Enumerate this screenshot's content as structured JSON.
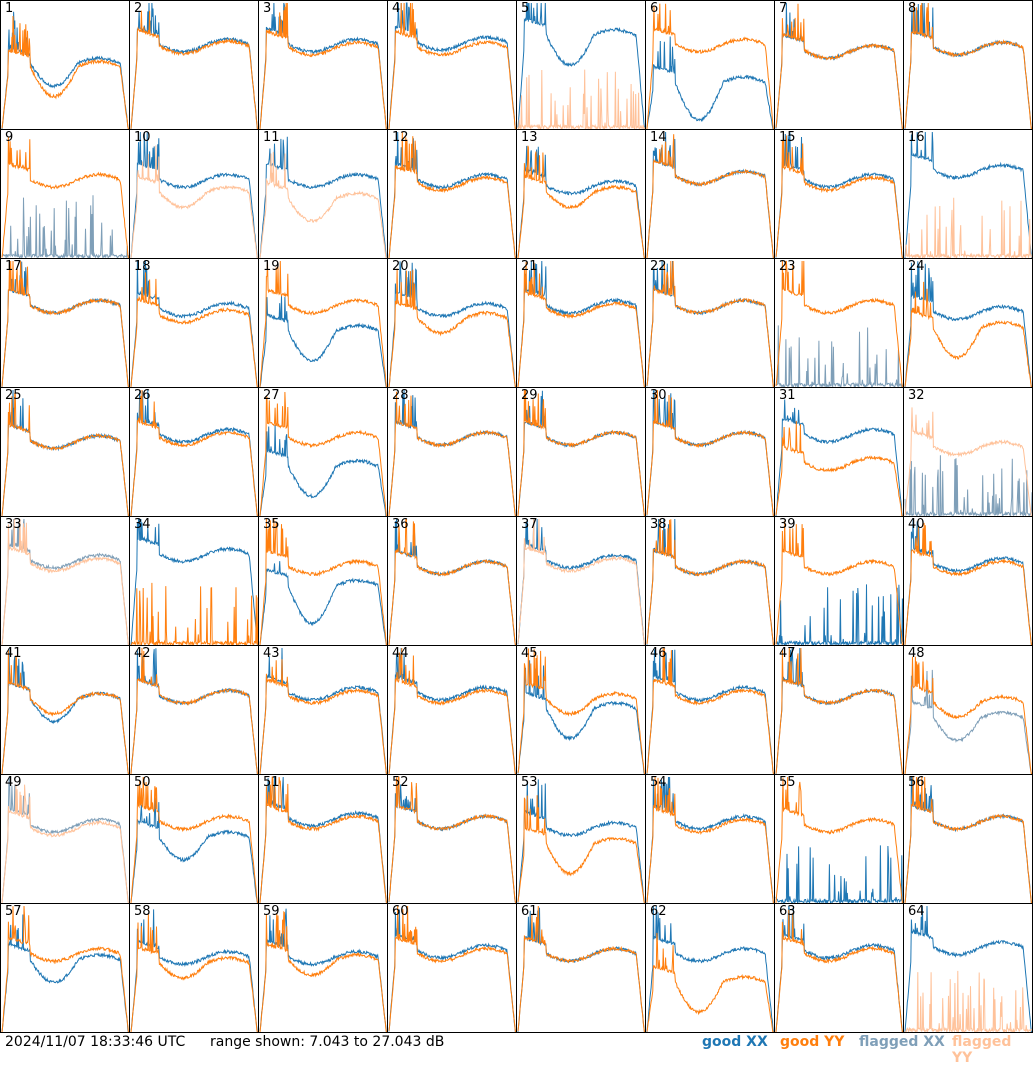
{
  "footer": {
    "timestamp": "2024/11/07 18:33:46 UTC",
    "range": "range shown: 7.043 to 27.043 dB"
  },
  "legend": [
    {
      "label": "good XX",
      "color": "#1f77b4"
    },
    {
      "label": "good YY",
      "color": "#ff7f0e"
    },
    {
      "label": "flagged XX",
      "color": "#7f9fb8"
    },
    {
      "label": "flagged YY",
      "color": "#ffc29a"
    }
  ],
  "chart_data": {
    "type": "line",
    "ylim": [
      7.043,
      27.043
    ],
    "yunit": "dB",
    "panels": [
      {
        "id": "1",
        "xx": "good",
        "yy": "good",
        "xxLevel": 17.5,
        "yyLevel": 17.0,
        "xxDip": 0.2,
        "yyDip": 0.3
      },
      {
        "id": "2",
        "xx": "good",
        "yy": "good",
        "xxLevel": 20.5,
        "yyLevel": 20.2,
        "xxDip": 0.0,
        "yyDip": 0.0
      },
      {
        "id": "3",
        "xx": "good",
        "yy": "good",
        "xxLevel": 20.5,
        "yyLevel": 20.0,
        "xxDip": 0.0,
        "yyDip": 0.0
      },
      {
        "id": "4",
        "xx": "good",
        "yy": "good",
        "xxLevel": 20.8,
        "yyLevel": 20.0,
        "xxDip": 0.0,
        "yyDip": 0.0
      },
      {
        "id": "5",
        "xx": "good",
        "yy": "flagged",
        "xxLevel": 22.0,
        "yyLevel": 7.5,
        "xxDip": 0.3,
        "yyDip": 0.0
      },
      {
        "id": "6",
        "xx": "good",
        "yy": "good",
        "xxLevel": 14.5,
        "yyLevel": 20.5,
        "xxDip": 0.4,
        "yyDip": 0.0
      },
      {
        "id": "7",
        "xx": "good",
        "yy": "good",
        "xxLevel": 19.5,
        "yyLevel": 19.5,
        "xxDip": 0.0,
        "yyDip": 0.0
      },
      {
        "id": "8",
        "xx": "good",
        "yy": "good",
        "xxLevel": 20.0,
        "yyLevel": 20.0,
        "xxDip": 0.0,
        "yyDip": 0.0
      },
      {
        "id": "9",
        "xx": "flagged",
        "yy": "good",
        "xxLevel": 8.0,
        "yyLevel": 19.5,
        "xxDip": 0.0,
        "yyDip": 0.0
      },
      {
        "id": "10",
        "xx": "good",
        "yy": "flagged",
        "xxLevel": 19.5,
        "yyLevel": 17.5,
        "xxDip": 0.0,
        "yyDip": 0.1
      },
      {
        "id": "11",
        "xx": "good",
        "yy": "flagged",
        "xxLevel": 19.5,
        "yyLevel": 16.5,
        "xxDip": 0.0,
        "yyDip": 0.2
      },
      {
        "id": "12",
        "xx": "good",
        "yy": "good",
        "xxLevel": 19.5,
        "yyLevel": 19.0,
        "xxDip": 0.0,
        "yyDip": 0.0
      },
      {
        "id": "13",
        "xx": "good",
        "yy": "good",
        "xxLevel": 18.5,
        "yyLevel": 17.5,
        "xxDip": 0.0,
        "yyDip": 0.1
      },
      {
        "id": "14",
        "xx": "good",
        "yy": "good",
        "xxLevel": 20.0,
        "yyLevel": 20.0,
        "xxDip": 0.0,
        "yyDip": 0.0
      },
      {
        "id": "15",
        "xx": "good",
        "yy": "good",
        "xxLevel": 19.5,
        "yyLevel": 19.0,
        "xxDip": 0.0,
        "yyDip": 0.0
      },
      {
        "id": "16",
        "xx": "good",
        "yy": "flagged",
        "xxLevel": 21.0,
        "yyLevel": 7.5,
        "xxDip": 0.0,
        "yyDip": 0.0
      },
      {
        "id": "17",
        "xx": "good",
        "yy": "good",
        "xxLevel": 20.0,
        "yyLevel": 20.0,
        "xxDip": 0.0,
        "yyDip": 0.0
      },
      {
        "id": "18",
        "xx": "good",
        "yy": "good",
        "xxLevel": 19.5,
        "yyLevel": 18.5,
        "xxDip": 0.0,
        "yyDip": 0.0
      },
      {
        "id": "19",
        "xx": "good",
        "yy": "good",
        "xxLevel": 16.0,
        "yyLevel": 20.0,
        "xxDip": 0.3,
        "yyDip": 0.0
      },
      {
        "id": "20",
        "xx": "good",
        "yy": "good",
        "xxLevel": 19.5,
        "yyLevel": 18.0,
        "xxDip": 0.0,
        "yyDip": 0.1
      },
      {
        "id": "21",
        "xx": "good",
        "yy": "good",
        "xxLevel": 20.0,
        "yyLevel": 19.5,
        "xxDip": 0.0,
        "yyDip": 0.0
      },
      {
        "id": "22",
        "xx": "good",
        "yy": "good",
        "xxLevel": 20.0,
        "yyLevel": 20.0,
        "xxDip": 0.0,
        "yyDip": 0.0
      },
      {
        "id": "23",
        "xx": "flagged",
        "yy": "good",
        "xxLevel": 8.5,
        "yyLevel": 20.0,
        "xxDip": 0.0,
        "yyDip": 0.0
      },
      {
        "id": "24",
        "xx": "good",
        "yy": "good",
        "xxLevel": 19.0,
        "yyLevel": 16.5,
        "xxDip": 0.0,
        "yyDip": 0.3
      },
      {
        "id": "25",
        "xx": "good",
        "yy": "good",
        "xxLevel": 19.0,
        "yyLevel": 19.0,
        "xxDip": 0.0,
        "yyDip": 0.0
      },
      {
        "id": "26",
        "xx": "good",
        "yy": "good",
        "xxLevel": 20.0,
        "yyLevel": 19.5,
        "xxDip": 0.0,
        "yyDip": 0.0
      },
      {
        "id": "27",
        "xx": "good",
        "yy": "good",
        "xxLevel": 15.0,
        "yyLevel": 19.5,
        "xxDip": 0.3,
        "yyDip": 0.0
      },
      {
        "id": "28",
        "xx": "good",
        "yy": "good",
        "xxLevel": 19.5,
        "yyLevel": 19.5,
        "xxDip": 0.0,
        "yyDip": 0.0
      },
      {
        "id": "29",
        "xx": "good",
        "yy": "good",
        "xxLevel": 19.5,
        "yyLevel": 19.5,
        "xxDip": 0.0,
        "yyDip": 0.0
      },
      {
        "id": "30",
        "xx": "good",
        "yy": "good",
        "xxLevel": 19.5,
        "yyLevel": 19.5,
        "xxDip": 0.0,
        "yyDip": 0.0
      },
      {
        "id": "31",
        "xx": "good",
        "yy": "good",
        "xxLevel": 20.0,
        "yyLevel": 15.5,
        "xxDip": 0.0,
        "yyDip": 0.0
      },
      {
        "id": "32",
        "xx": "flagged",
        "yy": "flagged",
        "xxLevel": 7.2,
        "yyLevel": 18.0,
        "xxDip": 0.0,
        "yyDip": 0.0
      },
      {
        "id": "33",
        "xx": "flagged",
        "yy": "flagged",
        "xxLevel": 20.5,
        "yyLevel": 20.0,
        "xxDip": 0.0,
        "yyDip": 0.0
      },
      {
        "id": "34",
        "xx": "good",
        "yy": "good",
        "xxLevel": 21.5,
        "yyLevel": 8.0,
        "xxDip": 0.0,
        "yyDip": 0.0
      },
      {
        "id": "35",
        "xx": "good",
        "yy": "good",
        "xxLevel": 16.5,
        "yyLevel": 19.5,
        "xxDip": 0.4,
        "yyDip": 0.0
      },
      {
        "id": "36",
        "xx": "good",
        "yy": "good",
        "xxLevel": 19.5,
        "yyLevel": 19.5,
        "xxDip": 0.0,
        "yyDip": 0.0
      },
      {
        "id": "37",
        "xx": "good",
        "yy": "flagged",
        "xxLevel": 20.5,
        "yyLevel": 20.0,
        "xxDip": 0.0,
        "yyDip": 0.0
      },
      {
        "id": "38",
        "xx": "good",
        "yy": "good",
        "xxLevel": 19.5,
        "yyLevel": 19.5,
        "xxDip": 0.0,
        "yyDip": 0.0
      },
      {
        "id": "39",
        "xx": "good",
        "yy": "good",
        "xxLevel": 8.0,
        "yyLevel": 19.5,
        "xxDip": 0.0,
        "yyDip": 0.0
      },
      {
        "id": "40",
        "xx": "good",
        "yy": "good",
        "xxLevel": 20.0,
        "yyLevel": 19.5,
        "xxDip": 0.0,
        "yyDip": 0.0
      },
      {
        "id": "41",
        "xx": "good",
        "yy": "good",
        "xxLevel": 19.0,
        "yyLevel": 19.0,
        "xxDip": 0.2,
        "yyDip": 0.1
      },
      {
        "id": "42",
        "xx": "good",
        "yy": "good",
        "xxLevel": 19.5,
        "yyLevel": 19.5,
        "xxDip": 0.0,
        "yyDip": 0.0
      },
      {
        "id": "43",
        "xx": "good",
        "yy": "good",
        "xxLevel": 20.0,
        "yyLevel": 19.5,
        "xxDip": 0.0,
        "yyDip": 0.0
      },
      {
        "id": "44",
        "xx": "good",
        "yy": "good",
        "xxLevel": 20.0,
        "yyLevel": 19.5,
        "xxDip": 0.0,
        "yyDip": 0.0
      },
      {
        "id": "45",
        "xx": "good",
        "yy": "good",
        "xxLevel": 17.5,
        "yyLevel": 19.0,
        "xxDip": 0.3,
        "yyDip": 0.1
      },
      {
        "id": "46",
        "xx": "good",
        "yy": "good",
        "xxLevel": 20.0,
        "yyLevel": 19.5,
        "xxDip": 0.0,
        "yyDip": 0.0
      },
      {
        "id": "47",
        "xx": "good",
        "yy": "good",
        "xxLevel": 19.5,
        "yyLevel": 19.5,
        "xxDip": 0.0,
        "yyDip": 0.0
      },
      {
        "id": "48",
        "xx": "flagged",
        "yy": "good",
        "xxLevel": 16.0,
        "yyLevel": 18.5,
        "xxDip": 0.2,
        "yyDip": 0.1
      },
      {
        "id": "49",
        "xx": "flagged",
        "yy": "flagged",
        "xxLevel": 19.5,
        "yyLevel": 19.0,
        "xxDip": 0.0,
        "yyDip": 0.0
      },
      {
        "id": "50",
        "xx": "good",
        "yy": "good",
        "xxLevel": 17.5,
        "yyLevel": 20.0,
        "xxDip": 0.2,
        "yyDip": 0.0
      },
      {
        "id": "51",
        "xx": "good",
        "yy": "good",
        "xxLevel": 20.5,
        "yyLevel": 20.0,
        "xxDip": 0.0,
        "yyDip": 0.0
      },
      {
        "id": "52",
        "xx": "good",
        "yy": "good",
        "xxLevel": 20.0,
        "yyLevel": 20.0,
        "xxDip": 0.0,
        "yyDip": 0.0
      },
      {
        "id": "53",
        "xx": "good",
        "yy": "good",
        "xxLevel": 19.0,
        "yyLevel": 16.5,
        "xxDip": 0.0,
        "yyDip": 0.3
      },
      {
        "id": "54",
        "xx": "good",
        "yy": "good",
        "xxLevel": 20.0,
        "yyLevel": 19.5,
        "xxDip": 0.0,
        "yyDip": 0.0
      },
      {
        "id": "55",
        "xx": "good",
        "yy": "good",
        "xxLevel": 8.0,
        "yyLevel": 19.5,
        "xxDip": 0.0,
        "yyDip": 0.0
      },
      {
        "id": "56",
        "xx": "good",
        "yy": "good",
        "xxLevel": 20.0,
        "yyLevel": 20.0,
        "xxDip": 0.0,
        "yyDip": 0.0
      },
      {
        "id": "57",
        "xx": "good",
        "yy": "good",
        "xxLevel": 18.5,
        "yyLevel": 19.5,
        "xxDip": 0.2,
        "yyDip": 0.0
      },
      {
        "id": "58",
        "xx": "good",
        "yy": "good",
        "xxLevel": 19.0,
        "yyLevel": 18.0,
        "xxDip": 0.0,
        "yyDip": 0.1
      },
      {
        "id": "59",
        "xx": "good",
        "yy": "good",
        "xxLevel": 19.0,
        "yyLevel": 18.5,
        "xxDip": 0.0,
        "yyDip": 0.1
      },
      {
        "id": "60",
        "xx": "good",
        "yy": "good",
        "xxLevel": 20.0,
        "yyLevel": 19.5,
        "xxDip": 0.0,
        "yyDip": 0.0
      },
      {
        "id": "61",
        "xx": "good",
        "yy": "good",
        "xxLevel": 19.5,
        "yyLevel": 19.5,
        "xxDip": 0.0,
        "yyDip": 0.0
      },
      {
        "id": "62",
        "xx": "good",
        "yy": "good",
        "xxLevel": 19.5,
        "yyLevel": 15.0,
        "xxDip": 0.0,
        "yyDip": 0.3
      },
      {
        "id": "63",
        "xx": "good",
        "yy": "good",
        "xxLevel": 20.0,
        "yyLevel": 19.5,
        "xxDip": 0.0,
        "yyDip": 0.0
      },
      {
        "id": "64",
        "xx": "good",
        "yy": "flagged",
        "xxLevel": 20.5,
        "yyLevel": 7.5,
        "xxDip": 0.0,
        "yyDip": 0.0
      }
    ]
  }
}
